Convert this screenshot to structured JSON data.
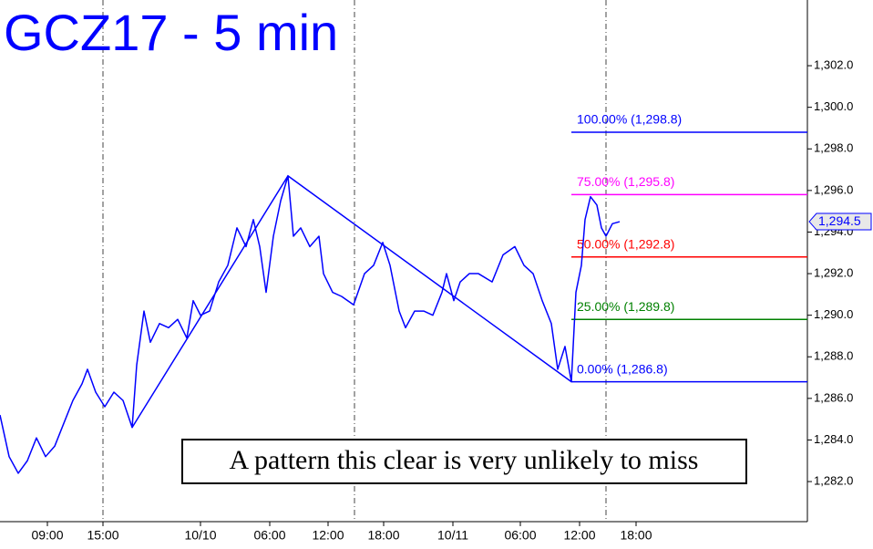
{
  "chart_data": {
    "type": "line",
    "title": "GCZ17 - 5 min",
    "annotation": "A pattern this clear is very unlikely to miss",
    "x": [
      0,
      1,
      2,
      3,
      4,
      5,
      6,
      7,
      8,
      9,
      9.6,
      10.5,
      11.5,
      12.5,
      13.5,
      14.5,
      15,
      15.8,
      16.5,
      17.5,
      18.5,
      19.5,
      20.5,
      21.2,
      22,
      23,
      24,
      25,
      26,
      27,
      27.8,
      28.5,
      29.2,
      30,
      30.8,
      31.6,
      32.2,
      33,
      34,
      35,
      35.5,
      36.5,
      37.5,
      38.8,
      40,
      41,
      42,
      42.8,
      43.8,
      44.5,
      45.5,
      46.5,
      47.5,
      48.5,
      49,
      49.8,
      50.5,
      51.5,
      52.5,
      54,
      55.2,
      56.5,
      57.5,
      58.5,
      59.5,
      60.5,
      61.2,
      62,
      62.7,
      63.2,
      63.8,
      64.2,
      64.8,
      65.5,
      66,
      66.5,
      67.2,
      68
    ],
    "series": [
      {
        "color": "#0000ff",
        "values": [
          1285.2,
          1283.2,
          1282.4,
          1283.0,
          1284.1,
          1283.2,
          1283.7,
          1284.8,
          1285.9,
          1286.7,
          1287.4,
          1286.3,
          1285.6,
          1286.3,
          1285.9,
          1284.6,
          1287.6,
          1290.2,
          1288.7,
          1289.6,
          1289.4,
          1289.8,
          1288.9,
          1290.7,
          1290.0,
          1290.2,
          1291.6,
          1292.4,
          1294.2,
          1293.3,
          1294.6,
          1293.3,
          1291.1,
          1293.8,
          1295.5,
          1296.7,
          1293.8,
          1294.2,
          1293.3,
          1293.8,
          1292.0,
          1291.1,
          1290.9,
          1290.5,
          1292.0,
          1292.4,
          1293.5,
          1292.4,
          1290.2,
          1289.4,
          1290.2,
          1290.2,
          1290.0,
          1291.1,
          1292.0,
          1290.7,
          1291.6,
          1292.0,
          1292.0,
          1291.6,
          1292.9,
          1293.3,
          1292.4,
          1292.0,
          1290.7,
          1289.6,
          1287.4,
          1288.5,
          1286.8,
          1291.1,
          1292.4,
          1294.6,
          1295.7,
          1295.3,
          1294.2,
          1293.8,
          1294.4,
          1294.5
        ]
      }
    ],
    "pattern": {
      "color": "#0000ff",
      "x": [
        14.5,
        31.6,
        62.7
      ],
      "values": [
        1284.6,
        1296.7,
        1286.8
      ]
    },
    "fib_levels": [
      {
        "value": 1298.8,
        "label": "100.00% (1,298.8)",
        "color": "#0000ff"
      },
      {
        "value": 1295.8,
        "label": "75.00% (1,295.8)",
        "color": "#ff00ff"
      },
      {
        "value": 1292.8,
        "label": "50.00% (1,292.8)",
        "color": "#ff0000"
      },
      {
        "value": 1289.8,
        "label": "25.00% (1,289.8)",
        "color": "#008000"
      },
      {
        "value": 1286.8,
        "label": "0.00% (1,286.8)",
        "color": "#0000ff"
      }
    ],
    "last_price": {
      "value": 1294.5,
      "label": "1,294.5"
    },
    "xlim": [
      0,
      88.6
    ],
    "xticks": [
      {
        "value": 5.2,
        "label": "09:00"
      },
      {
        "value": 11.3,
        "label": "15:00"
      },
      {
        "value": 22,
        "label": "10/10"
      },
      {
        "value": 29.6,
        "label": "06:00"
      },
      {
        "value": 36,
        "label": "12:00"
      },
      {
        "value": 42.1,
        "label": "18:00"
      },
      {
        "value": 49.7,
        "label": "10/11"
      },
      {
        "value": 57.1,
        "label": "06:00"
      },
      {
        "value": 63.6,
        "label": "12:00"
      },
      {
        "value": 69.8,
        "label": "18:00"
      }
    ],
    "ylim": [
      1280.16,
      1305.16
    ],
    "yticks": [
      {
        "value": 1282,
        "label": "1,282.0"
      },
      {
        "value": 1284,
        "label": "1,284.0"
      },
      {
        "value": 1286,
        "label": "1,286.0"
      },
      {
        "value": 1288,
        "label": "1,288.0"
      },
      {
        "value": 1290,
        "label": "1,290.0"
      },
      {
        "value": 1292,
        "label": "1,292.0"
      },
      {
        "value": 1294,
        "label": "1,294.0"
      },
      {
        "value": 1296,
        "label": "1,296.0"
      },
      {
        "value": 1298,
        "label": "1,298.0"
      },
      {
        "value": 1300,
        "label": "1,300.0"
      },
      {
        "value": 1302,
        "label": "1,302.0"
      }
    ]
  }
}
